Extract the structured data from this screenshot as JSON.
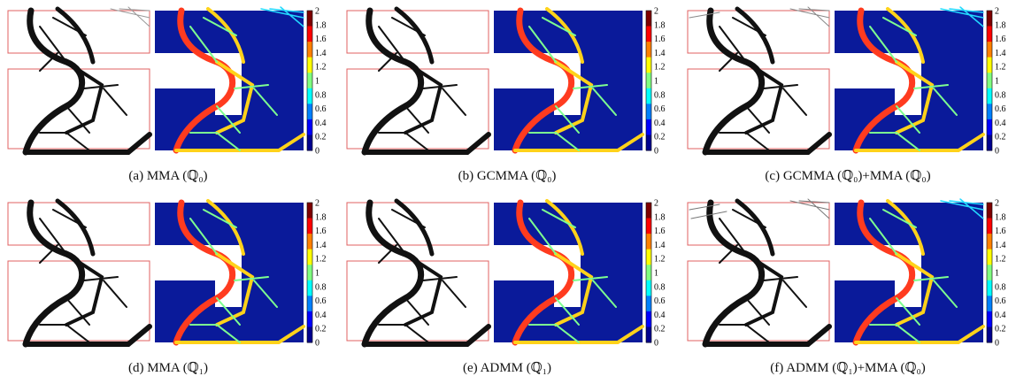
{
  "figure": {
    "subfigures": [
      {
        "label": "(a)",
        "method": "MMA",
        "space": "(ℚ₀)"
      },
      {
        "label": "(b)",
        "method": "GCMMA",
        "space": "(ℚ₀)"
      },
      {
        "label": "(c)",
        "method": "GCMMA (ℚ₀)+MMA",
        "space": "(ℚ₀)"
      },
      {
        "label": "(d)",
        "method": "MMA",
        "space": "(ℚ₁)"
      },
      {
        "label": "(e)",
        "method": "ADMM",
        "space": "(ℚ₁)"
      },
      {
        "label": "(f)",
        "method": "ADMM (ℚ₁)+MMA",
        "space": "(ℚ₀)"
      }
    ],
    "colorbar": {
      "ticks": [
        "2",
        "1.8",
        "1.6",
        "1.4",
        "1.2",
        "1",
        "0.8",
        "0.6",
        "0.4",
        "0.2",
        "0"
      ],
      "colors": [
        "#7f0000",
        "#ff0000",
        "#ff8000",
        "#ffff00",
        "#80ff80",
        "#00ffff",
        "#0080ff",
        "#0000ff",
        "#00008f"
      ]
    }
  }
}
